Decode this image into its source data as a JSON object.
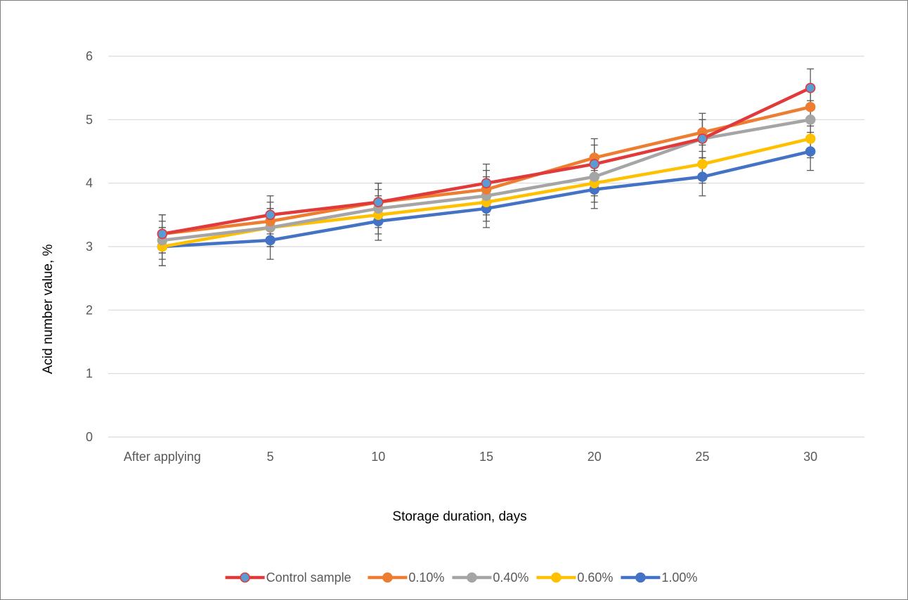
{
  "chart_data": {
    "type": "line",
    "title": "",
    "xlabel": "Storage duration, days",
    "ylabel": "Acid number value, %",
    "categories": [
      "After applying",
      "5",
      "10",
      "15",
      "20",
      "25",
      "30"
    ],
    "ylim": [
      0,
      6
    ],
    "yticks": [
      "0",
      "1",
      "2",
      "3",
      "4",
      "5",
      "6"
    ],
    "grid": "horizontal",
    "legend_position": "bottom",
    "error_bar": 0.3,
    "series": [
      {
        "name": "Control sample",
        "color": "#e03a3a",
        "marker_fill": "#5b9bd5",
        "values": [
          3.2,
          3.5,
          3.7,
          4.0,
          4.3,
          4.7,
          5.5
        ]
      },
      {
        "name": "0.10%",
        "color": "#ed7d31",
        "marker_fill": "#ed7d31",
        "values": [
          3.2,
          3.4,
          3.7,
          3.9,
          4.4,
          4.8,
          5.2
        ]
      },
      {
        "name": "0.40%",
        "color": "#a5a5a5",
        "marker_fill": "#a5a5a5",
        "values": [
          3.1,
          3.3,
          3.6,
          3.8,
          4.1,
          4.7,
          5.0
        ]
      },
      {
        "name": "0.60%",
        "color": "#ffc000",
        "marker_fill": "#ffc000",
        "values": [
          3.0,
          3.3,
          3.5,
          3.7,
          4.0,
          4.3,
          4.7
        ]
      },
      {
        "name": "1.00%",
        "color": "#4472c4",
        "marker_fill": "#4472c4",
        "values": [
          3.0,
          3.1,
          3.4,
          3.6,
          3.9,
          4.1,
          4.5
        ]
      }
    ]
  }
}
